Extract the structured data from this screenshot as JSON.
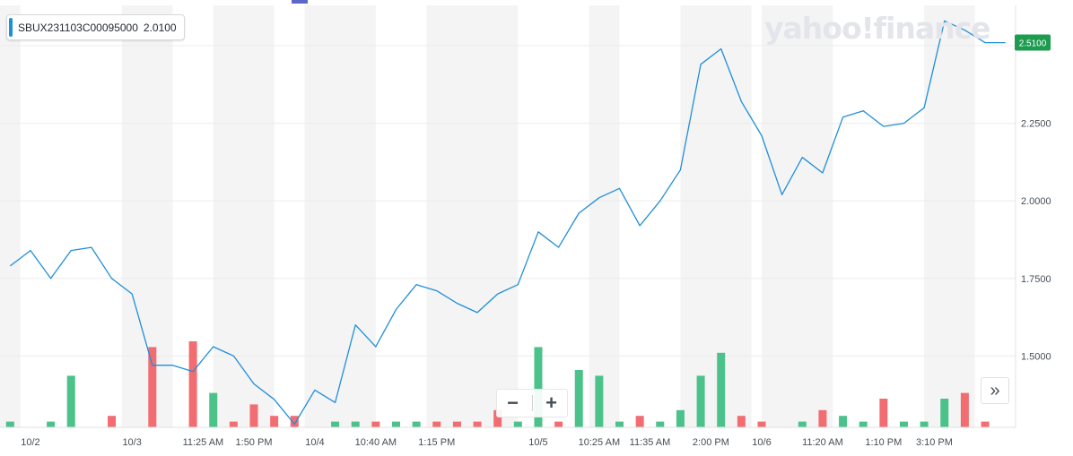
{
  "legend": {
    "label": "SBUX231103C00095000",
    "value": "2.0100"
  },
  "watermark": "yahoo!finance",
  "zoom": {
    "minus": "−",
    "plus": "+"
  },
  "scroll_icon": "»",
  "colors": {
    "line": "#1f8fd8",
    "volume_up": "#4cc28b",
    "volume_down": "#f26d72",
    "last_price_badge": "#1d9c50",
    "band": "#f4f4f4",
    "grid": "#ececec",
    "axis_text": "#464e56"
  },
  "chart_data": {
    "type": "line",
    "title": "",
    "series_name": "SBUX231103C00095000",
    "last_price": 2.51,
    "last_price_label": "2.5100",
    "ylim": [
      1.27,
      2.63
    ],
    "y_ticks": [
      {
        "value": 1.5,
        "label": "1.5000"
      },
      {
        "value": 1.75,
        "label": "1.7500"
      },
      {
        "value": 2.0,
        "label": "2.0000"
      },
      {
        "value": 2.25,
        "label": "2.2500"
      }
    ],
    "x_ticks": [
      {
        "index": 1,
        "label": "10/2"
      },
      {
        "index": 6,
        "label": "10/3"
      },
      {
        "index": 9.5,
        "label": "11:25 AM"
      },
      {
        "index": 12,
        "label": "1:50 PM"
      },
      {
        "index": 15,
        "label": "10/4"
      },
      {
        "index": 18,
        "label": "10:40 AM"
      },
      {
        "index": 21,
        "label": "1:15 PM"
      },
      {
        "index": 26,
        "label": "10/5"
      },
      {
        "index": 29,
        "label": "10:25 AM"
      },
      {
        "index": 31.5,
        "label": "11:35 AM"
      },
      {
        "index": 34.5,
        "label": "2:00 PM"
      },
      {
        "index": 37,
        "label": "10/6"
      },
      {
        "index": 40,
        "label": "11:20 AM"
      },
      {
        "index": 43,
        "label": "1:10 PM"
      },
      {
        "index": 45.5,
        "label": "3:10 PM"
      }
    ],
    "price": [
      1.79,
      1.84,
      1.75,
      1.84,
      1.85,
      1.75,
      1.7,
      1.47,
      1.47,
      1.45,
      1.53,
      1.5,
      1.41,
      1.36,
      1.28,
      1.39,
      1.35,
      1.6,
      1.53,
      1.65,
      1.73,
      1.71,
      1.67,
      1.64,
      1.7,
      1.73,
      1.9,
      1.85,
      1.96,
      2.01,
      2.04,
      1.92,
      2.0,
      2.1,
      2.44,
      2.49,
      2.32,
      2.21,
      2.02,
      2.14,
      2.09,
      2.27,
      2.29,
      2.24,
      2.25,
      2.3,
      2.58,
      2.55,
      2.51,
      2.51
    ],
    "volume": [
      1,
      0,
      1,
      9,
      0,
      2,
      0,
      14,
      0,
      15,
      6,
      1,
      4,
      2,
      2,
      0,
      1,
      1,
      1,
      1,
      1,
      1,
      1,
      1,
      3,
      1,
      14,
      1,
      10,
      9,
      1,
      2,
      1,
      3,
      9,
      13,
      2,
      1,
      0,
      1,
      3,
      2,
      1,
      5,
      1,
      1,
      5,
      6,
      1,
      0
    ],
    "volume_direction": [
      "up",
      "",
      "up",
      "up",
      "",
      "down",
      "",
      "down",
      "",
      "down",
      "up",
      "down",
      "down",
      "down",
      "down",
      "",
      "up",
      "up",
      "down",
      "up",
      "up",
      "down",
      "down",
      "down",
      "down",
      "up",
      "up",
      "down",
      "up",
      "up",
      "up",
      "down",
      "up",
      "up",
      "up",
      "up",
      "down",
      "down",
      "",
      "up",
      "down",
      "up",
      "up",
      "down",
      "up",
      "up",
      "up",
      "down",
      "down",
      ""
    ]
  }
}
